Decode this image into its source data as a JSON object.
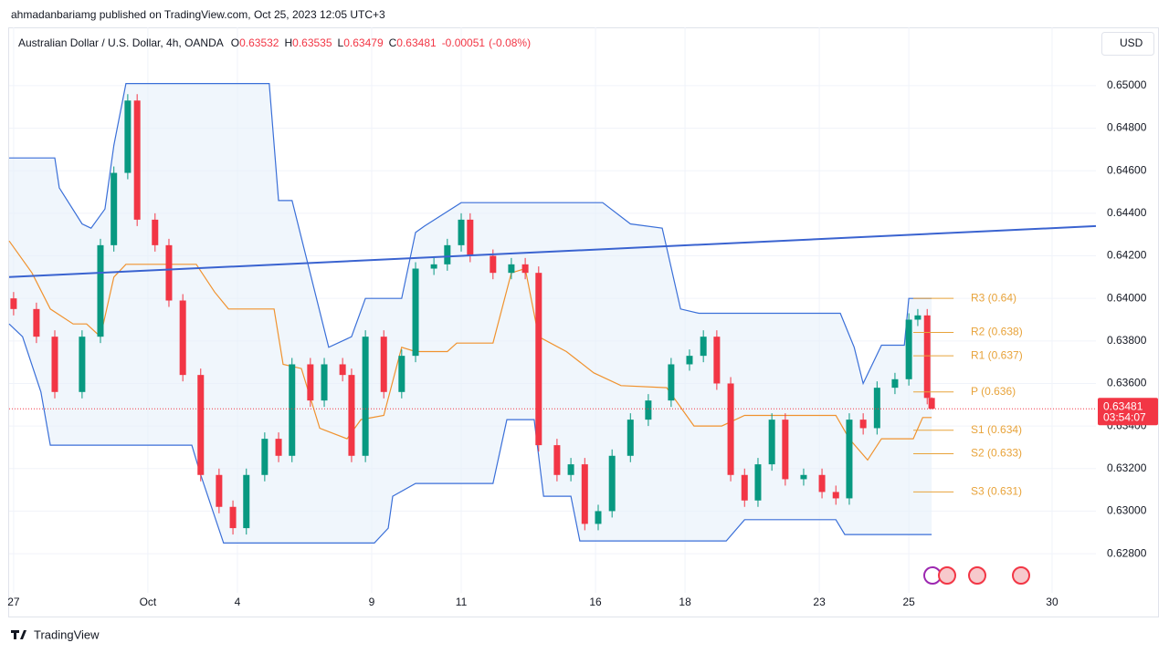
{
  "header": {
    "published": "ahmadanbariamg published on TradingView.com, Oct 25, 2023 12:05 UTC+3"
  },
  "footer": {
    "brand": "TradingView"
  },
  "chart_data": {
    "type": "candlestick",
    "title": "Australian Dollar / U.S. Dollar, 4h, OANDA",
    "ohlc_legend": [
      {
        "key": "O",
        "value": 0.63532
      },
      {
        "key": "H",
        "value": 0.63535
      },
      {
        "key": "L",
        "value": 0.63479
      },
      {
        "key": "C",
        "value": 0.63481
      }
    ],
    "change": -0.00051,
    "change_pct": {
      "value": -0.08,
      "label": "(-0.08%)"
    },
    "currency": "USD",
    "last_price": 0.63481,
    "countdown": "03:54:07",
    "up_color": "#089981",
    "down_color": "#f23645",
    "grid": true,
    "ylim": [
      0.62616,
      0.65274
    ],
    "yticks": [
      {
        "value": 0.628,
        "label": "0.62800"
      },
      {
        "value": 0.63,
        "label": "0.63000"
      },
      {
        "value": 0.632,
        "label": "0.63200"
      },
      {
        "value": 0.634,
        "label": "0.63400"
      },
      {
        "value": 0.636,
        "label": "0.63600"
      },
      {
        "value": 0.638,
        "label": "0.63800"
      },
      {
        "value": 0.64,
        "label": "0.64000"
      },
      {
        "value": 0.642,
        "label": "0.64200"
      },
      {
        "value": 0.644,
        "label": "0.64400"
      },
      {
        "value": 0.646,
        "label": "0.64600"
      },
      {
        "value": 0.648,
        "label": "0.64800"
      },
      {
        "value": 0.65,
        "label": "0.65000"
      }
    ],
    "xlim": [
      -0.1,
      24.18
    ],
    "xticks": [
      {
        "value": 0,
        "label": "27"
      },
      {
        "value": 3,
        "label": "Oct"
      },
      {
        "value": 5,
        "label": "4"
      },
      {
        "value": 8,
        "label": "9"
      },
      {
        "value": 10,
        "label": "11"
      },
      {
        "value": 13,
        "label": "16"
      },
      {
        "value": 15,
        "label": "18"
      },
      {
        "value": 18,
        "label": "23"
      },
      {
        "value": 20,
        "label": "25"
      },
      {
        "value": 23.2,
        "label": "30"
      }
    ],
    "x": [
      0,
      0.51,
      0.92,
      1.53,
      1.94,
      2.24,
      2.55,
      2.76,
      3.16,
      3.47,
      3.78,
      4.18,
      4.59,
      4.9,
      5.2,
      5.61,
      5.92,
      6.22,
      6.63,
      6.94,
      7.35,
      7.55,
      7.86,
      8.27,
      8.67,
      8.98,
      9.39,
      9.69,
      10,
      10.2,
      10.71,
      11.12,
      11.43,
      11.73,
      12.14,
      12.45,
      12.76,
      13.06,
      13.37,
      13.78,
      14.18,
      14.69,
      15.1,
      15.41,
      15.71,
      16.02,
      16.33,
      16.63,
      16.94,
      17.24,
      17.65,
      18.06,
      18.37,
      18.67,
      18.98,
      19.29,
      19.69,
      20,
      20.2,
      20.41,
      20.51
    ],
    "open": [
      0.64,
      0.6395,
      0.6382,
      0.6356,
      0.6382,
      0.6425,
      0.6459,
      0.6493,
      0.6437,
      0.6425,
      0.6399,
      0.6364,
      0.6317,
      0.6302,
      0.6292,
      0.6317,
      0.6334,
      0.6326,
      0.6369,
      0.6352,
      0.6369,
      0.6364,
      0.6326,
      0.6382,
      0.6356,
      0.6373,
      0.6414,
      0.6416,
      0.6425,
      0.6437,
      0.642,
      0.6412,
      0.6416,
      0.6412,
      0.6331,
      0.6317,
      0.6322,
      0.6294,
      0.63,
      0.6326,
      0.6343,
      0.6352,
      0.6369,
      0.6373,
      0.6382,
      0.636,
      0.6317,
      0.6305,
      0.6322,
      0.6343,
      0.6315,
      0.6317,
      0.6309,
      0.6306,
      0.6343,
      0.6339,
      0.6358,
      0.6362,
      0.639,
      0.6392,
      0.63532
    ],
    "high": [
      0.6403,
      0.6398,
      0.6385,
      0.6385,
      0.6428,
      0.6462,
      0.6496,
      0.6496,
      0.644,
      0.6428,
      0.6402,
      0.6367,
      0.632,
      0.6305,
      0.632,
      0.6337,
      0.6337,
      0.6372,
      0.6372,
      0.6372,
      0.6372,
      0.6367,
      0.6385,
      0.6385,
      0.6376,
      0.6417,
      0.6419,
      0.6428,
      0.644,
      0.644,
      0.6423,
      0.6419,
      0.6419,
      0.6415,
      0.6334,
      0.6325,
      0.6325,
      0.6303,
      0.6329,
      0.6346,
      0.6355,
      0.6372,
      0.6376,
      0.6385,
      0.6385,
      0.6363,
      0.632,
      0.6325,
      0.6346,
      0.6346,
      0.632,
      0.632,
      0.6312,
      0.6346,
      0.6346,
      0.6361,
      0.6365,
      0.6393,
      0.6395,
      0.6395,
      0.63535
    ],
    "low": [
      0.6392,
      0.6379,
      0.6353,
      0.6353,
      0.6379,
      0.6422,
      0.6456,
      0.6434,
      0.6422,
      0.6396,
      0.6361,
      0.6314,
      0.6299,
      0.6289,
      0.6289,
      0.6314,
      0.6323,
      0.6323,
      0.6349,
      0.6349,
      0.6361,
      0.6323,
      0.6323,
      0.6353,
      0.6353,
      0.637,
      0.6411,
      0.6413,
      0.6422,
      0.6417,
      0.6409,
      0.6409,
      0.6409,
      0.6328,
      0.6314,
      0.6314,
      0.6291,
      0.6291,
      0.6297,
      0.6323,
      0.634,
      0.6349,
      0.6366,
      0.637,
      0.6357,
      0.6314,
      0.6302,
      0.6302,
      0.6319,
      0.6312,
      0.6312,
      0.6306,
      0.6303,
      0.6303,
      0.6336,
      0.6336,
      0.6355,
      0.6359,
      0.6387,
      0.63502,
      0.63479
    ],
    "close": [
      0.6395,
      0.6382,
      0.6356,
      0.6382,
      0.6425,
      0.6459,
      0.6493,
      0.6437,
      0.6425,
      0.6399,
      0.6364,
      0.6317,
      0.6302,
      0.6292,
      0.6317,
      0.6334,
      0.6326,
      0.6369,
      0.6352,
      0.6369,
      0.6364,
      0.6326,
      0.6382,
      0.6356,
      0.6373,
      0.6414,
      0.6416,
      0.6425,
      0.6437,
      0.642,
      0.6412,
      0.6416,
      0.6412,
      0.6331,
      0.6317,
      0.6322,
      0.6294,
      0.63,
      0.6326,
      0.6343,
      0.6352,
      0.6369,
      0.6373,
      0.6382,
      0.636,
      0.6317,
      0.6305,
      0.6322,
      0.6343,
      0.6315,
      0.6317,
      0.6309,
      0.6306,
      0.6343,
      0.6339,
      0.6358,
      0.6362,
      0.639,
      0.6392,
      0.63532,
      0.63481
    ],
    "channel": {
      "fill": "#e6f0fa",
      "upper": {
        "color": "#3a6fd8",
        "x": [
          -0.1,
          0.92,
          1.02,
          1.53,
          1.73,
          2.04,
          2.24,
          2.51,
          5.71,
          5.92,
          6.22,
          7.04,
          7.55,
          7.86,
          8.67,
          8.98,
          9.18,
          10,
          13.16,
          13.78,
          14.49,
          14.9,
          15.31,
          18.47,
          18.78,
          18.98,
          19.39,
          19.9,
          20,
          20.51
        ],
        "values": [
          0.6466,
          0.6466,
          0.6452,
          0.6435,
          0.6433,
          0.6442,
          0.6472,
          0.6501,
          0.6501,
          0.6446,
          0.6446,
          0.6377,
          0.6382,
          0.64,
          0.64,
          0.6431,
          0.6434,
          0.6445,
          0.6445,
          0.6435,
          0.6433,
          0.6395,
          0.6393,
          0.6393,
          0.6377,
          0.636,
          0.6378,
          0.6378,
          0.64,
          0.64
        ]
      },
      "lower": {
        "color": "#3a6fd8",
        "x": [
          -0.1,
          0.2,
          0.61,
          0.82,
          3.98,
          4.18,
          4.69,
          8.06,
          8.37,
          8.47,
          8.98,
          10.71,
          11.02,
          11.63,
          11.84,
          12.45,
          12.65,
          15.92,
          16.33,
          18.37,
          18.57,
          20.51
        ],
        "values": [
          0.6388,
          0.6382,
          0.6356,
          0.6331,
          0.6331,
          0.6317,
          0.6285,
          0.6285,
          0.6292,
          0.6307,
          0.6313,
          0.6313,
          0.6343,
          0.6343,
          0.6307,
          0.6307,
          0.6286,
          0.6286,
          0.6296,
          0.6296,
          0.6289,
          0.6289
        ]
      },
      "middle": {
        "color": "#f0922e",
        "x": [
          -0.1,
          0.41,
          0.82,
          1.33,
          1.63,
          1.94,
          2.24,
          2.51,
          4.08,
          4.49,
          4.8,
          5.82,
          6.02,
          6.43,
          6.84,
          7.45,
          7.76,
          8.27,
          8.67,
          8.98,
          9.69,
          9.9,
          10.71,
          11.12,
          11.43,
          11.73,
          12.35,
          12.96,
          13.57,
          14.59,
          15.2,
          15.82,
          16.33,
          18.37,
          18.67,
          19.08,
          19.39,
          20.1,
          20.31,
          20.51
        ],
        "values": [
          0.6427,
          0.6412,
          0.6395,
          0.6388,
          0.6388,
          0.6382,
          0.641,
          0.6416,
          0.6416,
          0.6403,
          0.6395,
          0.6395,
          0.6369,
          0.6367,
          0.6339,
          0.6334,
          0.6343,
          0.6345,
          0.6377,
          0.6375,
          0.6375,
          0.6379,
          0.6379,
          0.6412,
          0.6414,
          0.6382,
          0.6375,
          0.6365,
          0.6359,
          0.6358,
          0.634,
          0.634,
          0.6345,
          0.6345,
          0.6334,
          0.6324,
          0.6334,
          0.6334,
          0.6344,
          0.6344
        ]
      }
    },
    "trendline": {
      "color": "#3a63d0",
      "x": [
        -0.1,
        24.18
      ],
      "values": [
        0.641,
        0.6434
      ]
    },
    "pivot_color": "#e8a33a",
    "pivot_x": [
      20.1,
      21.0
    ],
    "pivots": [
      {
        "label": "R3 (0.64)",
        "value": 0.64
      },
      {
        "label": "R2 (0.638)",
        "value": 0.6384
      },
      {
        "label": "R1 (0.637)",
        "value": 0.6373
      },
      {
        "label": "P (0.636)",
        "value": 0.6356
      },
      {
        "label": "S1 (0.634)",
        "value": 0.6338
      },
      {
        "label": "S2 (0.633)",
        "value": 0.6327
      },
      {
        "label": "S3 (0.631)",
        "value": 0.6309
      }
    ]
  }
}
